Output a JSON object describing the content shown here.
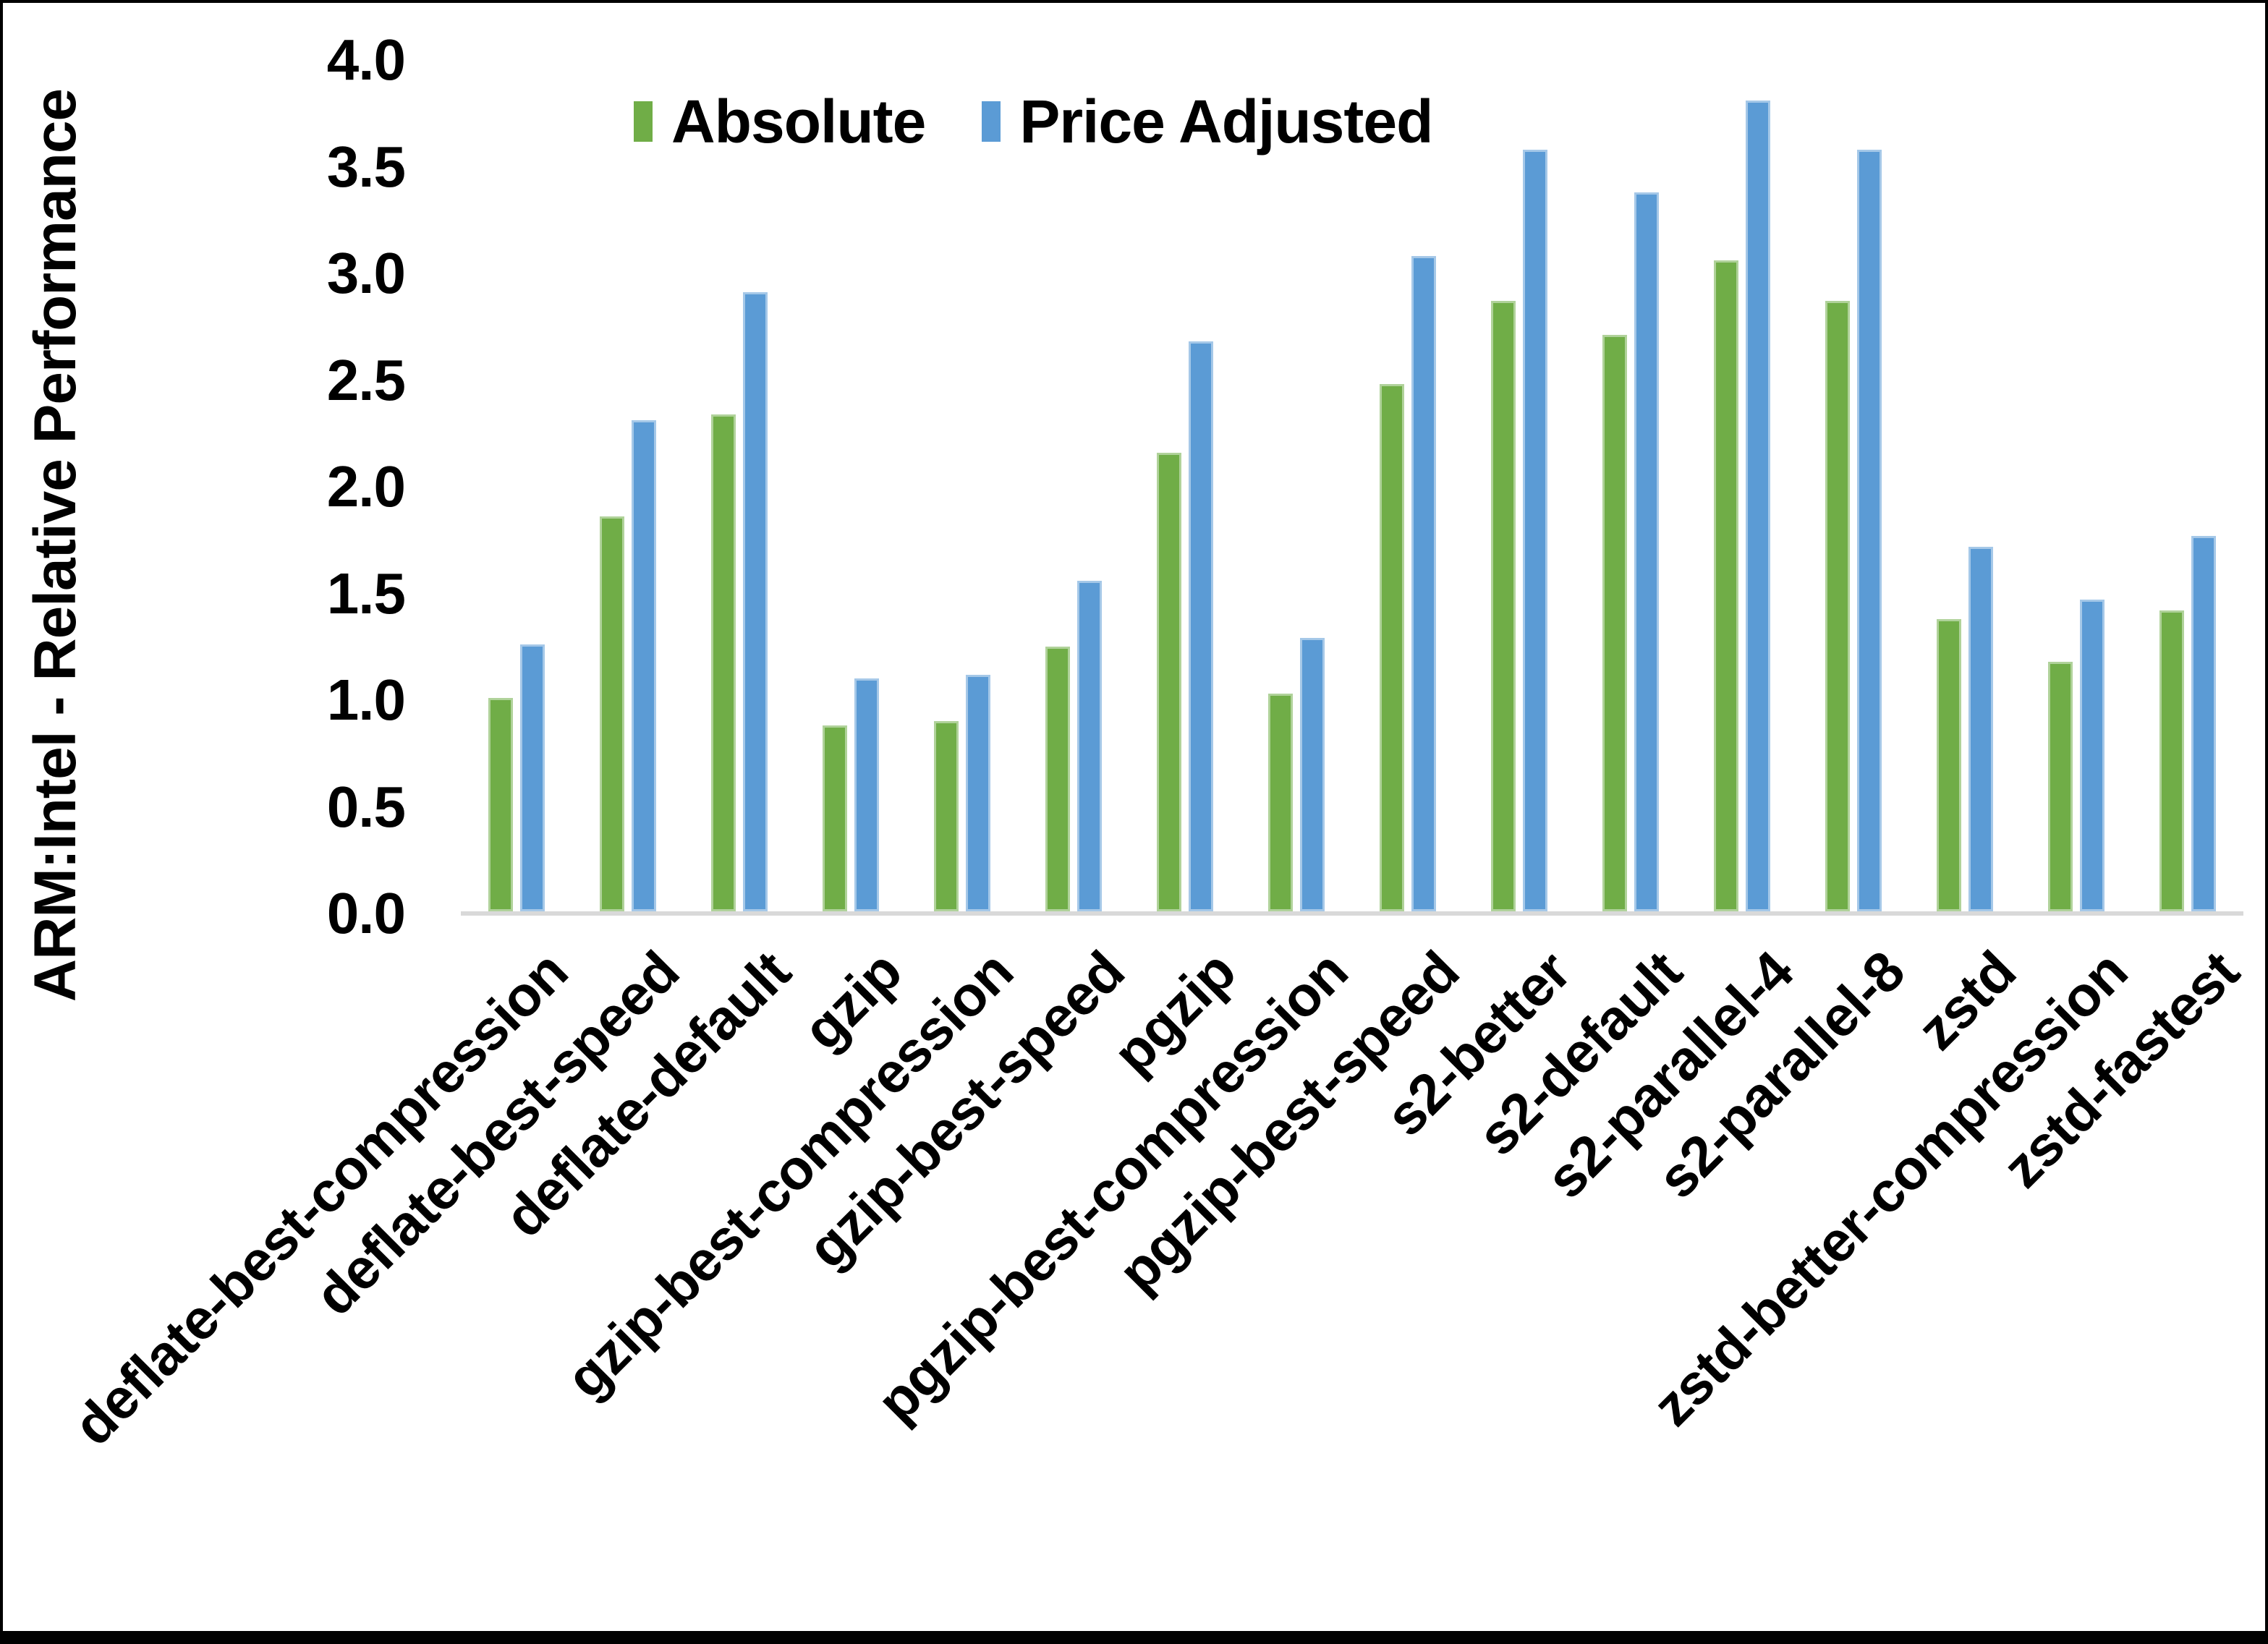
{
  "chart_data": {
    "type": "bar",
    "title": "",
    "ylabel": "ARM:Intel - Relative Performance",
    "xlabel": "",
    "ylim": [
      0.0,
      4.0
    ],
    "yticks": [
      "0.0",
      "0.5",
      "1.0",
      "1.5",
      "2.0",
      "2.5",
      "3.0",
      "3.5",
      "4.0"
    ],
    "grid": false,
    "legend_position": "top",
    "categories": [
      "deflate-best-compression",
      "deflate-best-speed",
      "deflate-default",
      "gzip",
      "gzip-best-compression",
      "gzip-best-speed",
      "pgzip",
      "pgzip-best-compression",
      "pgzip-best-speed",
      "s2-better",
      "s2-default",
      "s2-parallel-4",
      "s2-parallel-8",
      "zstd",
      "zstd-better-compression",
      "zstd-fastest"
    ],
    "series": [
      {
        "name": "Absolute",
        "color": "#70AD47",
        "values": [
          1.0,
          1.85,
          2.33,
          0.87,
          0.89,
          1.24,
          2.15,
          1.02,
          2.47,
          2.86,
          2.7,
          3.05,
          2.86,
          1.37,
          1.17,
          1.41
        ]
      },
      {
        "name": "Price Adjusted",
        "color": "#5B9BD5",
        "values": [
          1.25,
          2.3,
          2.9,
          1.09,
          1.11,
          1.55,
          2.67,
          1.28,
          3.07,
          3.57,
          3.37,
          3.8,
          3.57,
          1.71,
          1.46,
          1.76
        ]
      }
    ],
    "axis_line_color": "#d9d9d9",
    "text_color": "#000000"
  }
}
